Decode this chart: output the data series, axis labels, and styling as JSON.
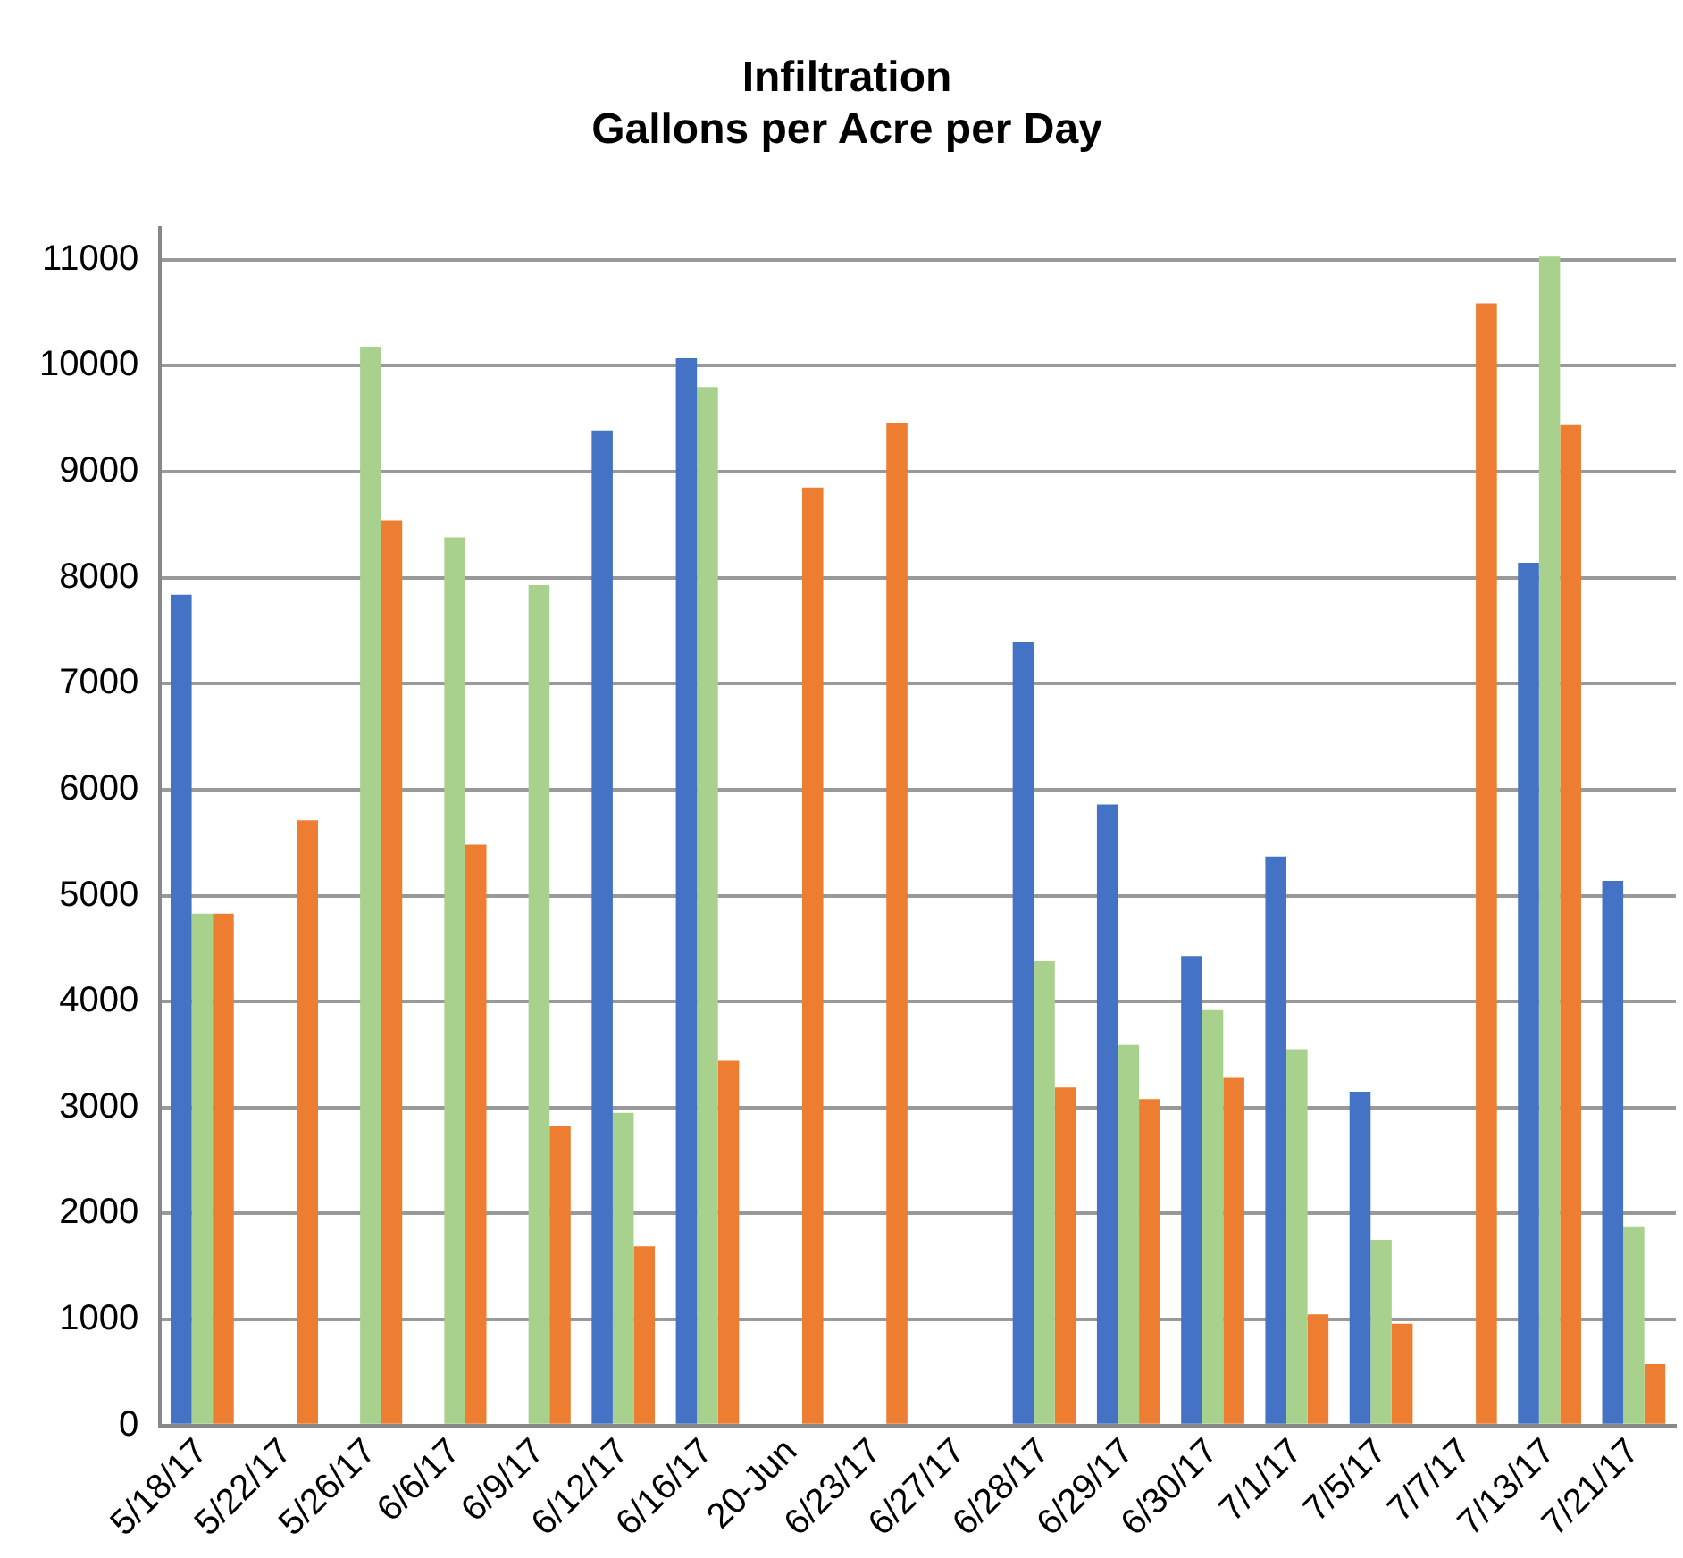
{
  "chart_data": {
    "type": "bar",
    "title": "Infiltration\nGallons per Acre per Day",
    "categories": [
      "5/18/17",
      "5/22/17",
      "5/26/17",
      "6/6/17",
      "6/9/17",
      "6/12/17",
      "6/16/17",
      "20-Jun",
      "6/23/17",
      "6/27/17",
      "6/28/17",
      "6/29/17",
      "6/30/17",
      "7/1/17",
      "7/5/17",
      "7/7/17",
      "7/13/17",
      "7/21/17"
    ],
    "series": [
      {
        "color": "#4472c4",
        "values": [
          7840,
          null,
          null,
          null,
          null,
          9390,
          10070,
          null,
          null,
          null,
          7390,
          5860,
          4430,
          5370,
          3150,
          null,
          8140,
          5140
        ]
      },
      {
        "color": "#a9d18e",
        "values": [
          4830,
          null,
          10180,
          8380,
          7930,
          2950,
          9800,
          null,
          null,
          null,
          4380,
          3590,
          3920,
          3550,
          1750,
          null,
          11030,
          1880
        ]
      },
      {
        "color": "#ed7d31",
        "values": [
          4830,
          5710,
          8540,
          5480,
          2830,
          1690,
          3440,
          8850,
          9460,
          null,
          3190,
          3080,
          3280,
          1050,
          960,
          10590,
          9440,
          580
        ]
      }
    ],
    "ylim": [
      0,
      11300
    ],
    "yticks": [
      0,
      1000,
      2000,
      3000,
      4000,
      5000,
      6000,
      7000,
      8000,
      9000,
      10000,
      11000
    ],
    "grid": "y",
    "legend": false
  }
}
